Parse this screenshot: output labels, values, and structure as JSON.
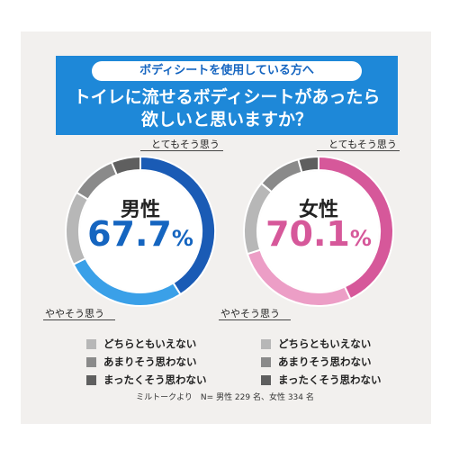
{
  "header": {
    "subtitle": "ボディシートを使用している方へ",
    "question_line1": "トイレに流せるボディシートがあったら",
    "question_line2": "欲しいと思いますか？"
  },
  "colors": {
    "background": "#f2f0ee",
    "header_blue": "#1e88d8",
    "male_dark": "#1a5bb5",
    "male_light": "#3aa0e8",
    "female_dark": "#d6589a",
    "female_light": "#ec9ec6",
    "gray_light": "#b7b7b7",
    "gray_mid": "#8a8a8a",
    "gray_dark": "#5f5f5f"
  },
  "legend": [
    "どちらともいえない",
    "あまりそう思わない",
    "まったくそう思わない"
  ],
  "footnote": "ミルトークより　N= 男性 229 名、女性 334 名",
  "chart_data": [
    {
      "type": "pie",
      "donut": true,
      "center_title": "男性",
      "center_value": "67.7",
      "center_unit": "%",
      "categories": [
        "とてもそう思う",
        "ややそう思う",
        "どちらともいえない",
        "あまりそう思わない",
        "まったくそう思わない"
      ],
      "values": [
        41,
        26.7,
        16,
        10,
        6.3
      ],
      "colors": [
        "#1a5bb5",
        "#3aa0e8",
        "#b7b7b7",
        "#8a8a8a",
        "#5f5f5f"
      ],
      "labelled_categories": [
        "とてもそう思う",
        "ややそう思う"
      ]
    },
    {
      "type": "pie",
      "donut": true,
      "center_title": "女性",
      "center_value": "70.1",
      "center_unit": "%",
      "categories": [
        "とてもそう思う",
        "ややそう思う",
        "どちらともいえない",
        "あまりそう思わない",
        "まったくそう思わない"
      ],
      "values": [
        43,
        27.1,
        16,
        9.5,
        4.4
      ],
      "colors": [
        "#d6589a",
        "#ec9ec6",
        "#b7b7b7",
        "#8a8a8a",
        "#5f5f5f"
      ],
      "labelled_categories": [
        "とてもそう思う",
        "ややそう思う"
      ]
    }
  ]
}
